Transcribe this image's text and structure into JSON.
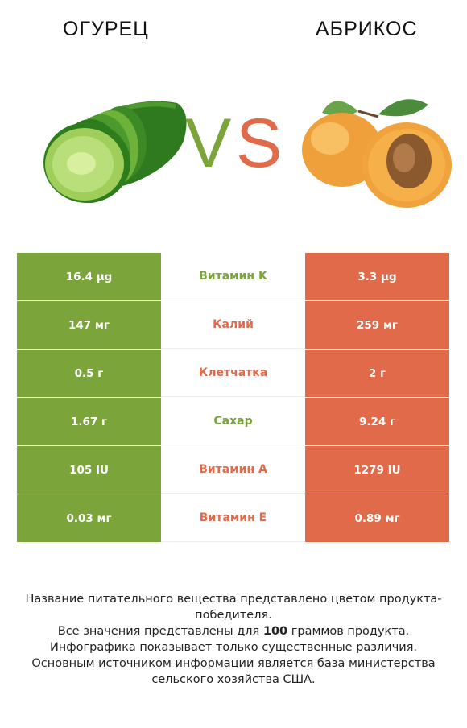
{
  "header": {
    "left_title": "ОГУРЕЦ",
    "right_title": "АБРИКОС",
    "vs_v": "V",
    "vs_s": "S"
  },
  "colors": {
    "winner_left": "#7ba43a",
    "winner_right": "#e06a4a"
  },
  "rows": [
    {
      "left": "16.4 µg",
      "label": "Витамин K",
      "right": "3.3 µg",
      "winner": "left"
    },
    {
      "left": "147 мг",
      "label": "Калий",
      "right": "259 мг",
      "winner": "right"
    },
    {
      "left": "0.5 г",
      "label": "Клетчатка",
      "right": "2 г",
      "winner": "right"
    },
    {
      "left": "1.67 г",
      "label": "Сахар",
      "right": "9.24 г",
      "winner": "left"
    },
    {
      "left": "105 IU",
      "label": "Витамин A",
      "right": "1279 IU",
      "winner": "right"
    },
    {
      "left": "0.03 мг",
      "label": "Витамин E",
      "right": "0.89 мг",
      "winner": "right"
    }
  ],
  "footer": {
    "line1": "Название питательного вещества представлено цветом продукта-победителя.",
    "line2_pre": "Все значения представлены для ",
    "line2_bold": "100",
    "line2_post": " граммов продукта.",
    "line3": "Инфографика показывает только существенные различия.",
    "line4": "Основным источником информации является база министерства сельского хозяйства США."
  }
}
